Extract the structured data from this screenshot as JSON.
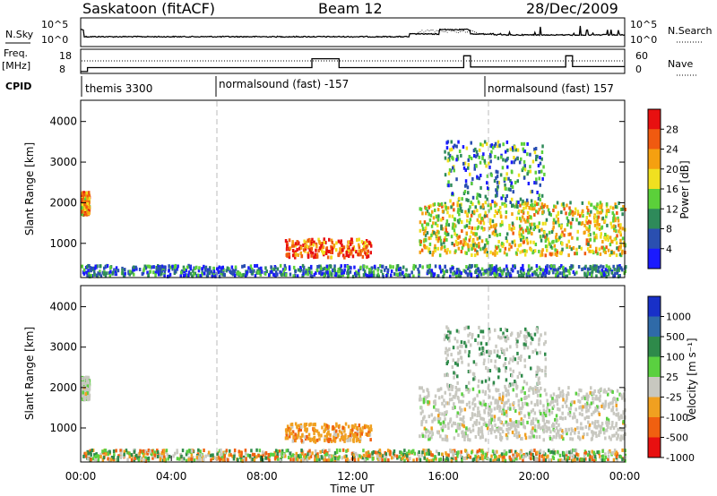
{
  "header": {
    "station": "Saskatoon (fitACF)",
    "beam": "Beam 12",
    "date": "28/Dec/2009"
  },
  "nsky_panel": {
    "left_label": "N.Sky",
    "right_label": "N.Search",
    "left_ticks": [
      "10^5",
      "10^0"
    ],
    "right_ticks": [
      "10^5",
      "10^0"
    ]
  },
  "freq_panel": {
    "left_label_line1": "Freq.",
    "left_label_line2": "[MHz]",
    "right_label": "Nave",
    "left_ticks": [
      "18",
      "8"
    ],
    "right_ticks": [
      "60",
      "0"
    ],
    "freq_steps": [
      {
        "t0": 0.0,
        "t1": 0.3,
        "f": 8.5
      },
      {
        "t0": 0.3,
        "t1": 10.2,
        "f": 10.5
      },
      {
        "t0": 10.2,
        "t1": 11.4,
        "f": 15.0
      },
      {
        "t0": 11.4,
        "t1": 16.9,
        "f": 10.5
      },
      {
        "t0": 16.9,
        "t1": 17.2,
        "f": 16.5
      },
      {
        "t0": 17.2,
        "t1": 21.4,
        "f": 10.8
      },
      {
        "t0": 21.4,
        "t1": 21.7,
        "f": 16.5
      },
      {
        "t0": 21.7,
        "t1": 24.0,
        "f": 11.0
      }
    ]
  },
  "cpid": {
    "label": "CPID",
    "segments": [
      {
        "start_hour": 0,
        "name": "themis 3300"
      },
      {
        "start_hour": 6,
        "name": "normalsound (fast) -157"
      },
      {
        "start_hour": 18,
        "name": "normalsound (fast) 157"
      }
    ]
  },
  "chart_data": [
    {
      "type": "heatmap",
      "name": "power",
      "ylabel": "Slant Range [km]",
      "xlabel": "Time UT",
      "xlim": [
        0,
        24
      ],
      "ylim": [
        180,
        4500
      ],
      "yticks": [
        "1000",
        "2000",
        "3000",
        "4000"
      ],
      "colorbar_label": "Power [dB]",
      "colorbar_ticks": [
        "4",
        "8",
        "12",
        "16",
        "20",
        "24",
        "28"
      ],
      "colorbar_colors": [
        "#1a1aff",
        "#2a4fb0",
        "#2e8a5a",
        "#5bd03a",
        "#f0e020",
        "#f5a010",
        "#f05a10",
        "#e81010"
      ],
      "regions": [
        {
          "t0": 0.0,
          "t1": 0.35,
          "r0": 1700,
          "r1": 2250,
          "level": 5
        },
        {
          "t0": 9.0,
          "t1": 12.8,
          "r0": 650,
          "r1": 1100,
          "level": 6
        },
        {
          "t0": 14.9,
          "t1": 24.0,
          "r0": 700,
          "r1": 2000,
          "level": 4
        },
        {
          "t0": 16.0,
          "t1": 20.5,
          "r0": 2000,
          "r1": 3500,
          "level": 2
        },
        {
          "t0": 0.0,
          "t1": 24.0,
          "r0": 180,
          "r1": 450,
          "level": 1
        }
      ]
    },
    {
      "type": "heatmap",
      "name": "velocity",
      "ylabel": "Slant Range [km]",
      "xlabel": "Time UT",
      "xlim": [
        0,
        24
      ],
      "ylim": [
        180,
        4500
      ],
      "yticks": [
        "1000",
        "2000",
        "3000",
        "4000"
      ],
      "xticks": [
        "00:00",
        "04:00",
        "08:00",
        "12:00",
        "16:00",
        "20:00",
        "00:00"
      ],
      "colorbar_label": "Velocity [m s⁻¹]",
      "colorbar_ticks": [
        "1000",
        "500",
        "100",
        "25",
        "-25",
        "-100",
        "-500",
        "-1000"
      ],
      "colorbar_colors": [
        "#1830c8",
        "#2f6aa8",
        "#2e8a4a",
        "#5ad040",
        "#c8c8c0",
        "#f0a020",
        "#f06010",
        "#e81010"
      ],
      "regions": [
        {
          "t0": 0.0,
          "t1": 0.35,
          "r0": 1700,
          "r1": 2250,
          "level": 4
        },
        {
          "t0": 9.0,
          "t1": 12.8,
          "r0": 650,
          "r1": 1100,
          "level": 5
        },
        {
          "t0": 14.9,
          "t1": 24.0,
          "r0": 700,
          "r1": 2000,
          "level": 4
        },
        {
          "t0": 16.0,
          "t1": 20.5,
          "r0": 2000,
          "r1": 3500,
          "level": 4
        },
        {
          "t0": 0.0,
          "t1": 24.0,
          "r0": 180,
          "r1": 450,
          "level": 3
        }
      ]
    }
  ]
}
